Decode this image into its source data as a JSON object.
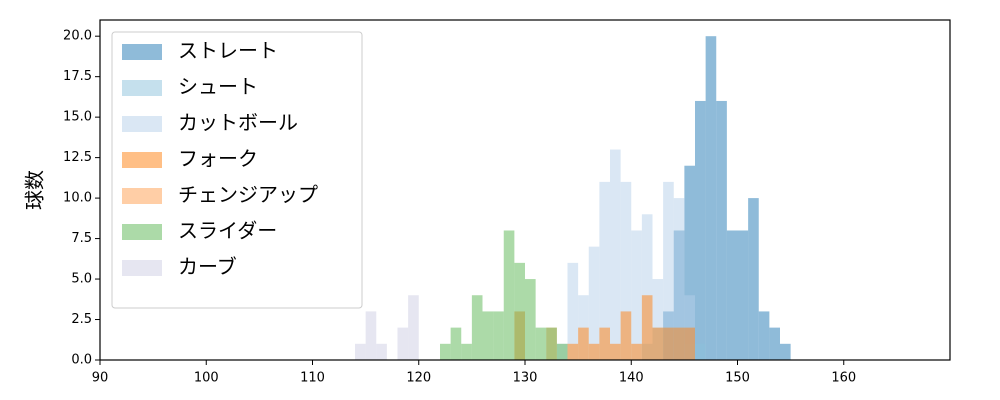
{
  "chart_data": {
    "type": "histogram",
    "ylabel": "球数",
    "xlim": [
      90,
      170
    ],
    "ylim": [
      0,
      21
    ],
    "xticks": [
      90,
      100,
      110,
      120,
      130,
      140,
      150,
      160
    ],
    "yticks": [
      {
        "value": 0,
        "label": "0.0"
      },
      {
        "value": 2.5,
        "label": "2.5"
      },
      {
        "value": 5,
        "label": "5.0"
      },
      {
        "value": 7.5,
        "label": "7.5"
      },
      {
        "value": 10,
        "label": "10.0"
      },
      {
        "value": 12.5,
        "label": "12.5"
      },
      {
        "value": 15,
        "label": "15.0"
      },
      {
        "value": 17.5,
        "label": "17.5"
      },
      {
        "value": 20,
        "label": "20.0"
      }
    ],
    "legend": "upper left",
    "opacity": 0.5,
    "bins": [
      114,
      115,
      116,
      117,
      118,
      119,
      120,
      121,
      122,
      123,
      124,
      125,
      126,
      127,
      128,
      129,
      130,
      131,
      132,
      133,
      134,
      135,
      136,
      137,
      138,
      139,
      140,
      141,
      142,
      143,
      144,
      145,
      146,
      147,
      148,
      149,
      150,
      151,
      152,
      153,
      154,
      155
    ],
    "series": [
      {
        "name": "ストレート",
        "color": "#1f77b4",
        "values": [
          0,
          0,
          0,
          0,
          0,
          0,
          0,
          0,
          0,
          0,
          0,
          0,
          0,
          0,
          0,
          0,
          0,
          0,
          0,
          0,
          0,
          0,
          0,
          0,
          0,
          0,
          0,
          0,
          0,
          3,
          8,
          12,
          16,
          20,
          16,
          8,
          8,
          10,
          3,
          2,
          1
        ]
      },
      {
        "name": "シュート",
        "color": "#8bc1db",
        "values": [
          0,
          0,
          0,
          0,
          0,
          0,
          0,
          0,
          0,
          0,
          0,
          0,
          0,
          0,
          0,
          0,
          0,
          0,
          0,
          0,
          0,
          0,
          0,
          0,
          0,
          0,
          0,
          1,
          2,
          2,
          2,
          1,
          1,
          0,
          0,
          0,
          0,
          0,
          0,
          0,
          0
        ]
      },
      {
        "name": "カットボール",
        "color": "#b5cfe9",
        "values": [
          0,
          0,
          0,
          0,
          0,
          0,
          0,
          0,
          0,
          0,
          0,
          0,
          0,
          0,
          0,
          0,
          0,
          0,
          0,
          1,
          6,
          4,
          7,
          11,
          13,
          11,
          8,
          9,
          5,
          11,
          10,
          4,
          0,
          0,
          0,
          0,
          0,
          0,
          0,
          0,
          0
        ]
      },
      {
        "name": "フォーク",
        "color": "#ff7f0e",
        "values": [
          0,
          0,
          0,
          0,
          0,
          0,
          0,
          0,
          0,
          0,
          0,
          0,
          0,
          0,
          0,
          3,
          0,
          0,
          0,
          0,
          1,
          2,
          1,
          2,
          1,
          3,
          1,
          4,
          2,
          2,
          2,
          2,
          0,
          0,
          0,
          0,
          0,
          0,
          0,
          0,
          0
        ]
      },
      {
        "name": "チェンジアップ",
        "color": "#ff9d4d",
        "values": [
          0,
          0,
          0,
          0,
          0,
          0,
          0,
          0,
          0,
          0,
          0,
          0,
          0,
          0,
          0,
          0,
          0,
          0,
          2,
          0,
          0,
          0,
          0,
          0,
          0,
          0,
          0,
          0,
          0,
          0,
          0,
          0,
          0,
          0,
          0,
          0,
          0,
          0,
          0,
          0,
          0
        ]
      },
      {
        "name": "スライダー",
        "color": "#5ab552",
        "values": [
          0,
          0,
          0,
          0,
          0,
          0,
          0,
          0,
          1,
          2,
          1,
          4,
          3,
          3,
          8,
          6,
          5,
          2,
          2,
          1,
          0,
          0,
          0,
          0,
          0,
          0,
          0,
          0,
          0,
          0,
          0,
          0,
          0,
          0,
          0,
          0,
          0,
          0,
          0,
          0,
          0
        ]
      },
      {
        "name": "カーブ",
        "color": "#cdcde3",
        "values": [
          1,
          3,
          1,
          0,
          2,
          4,
          0,
          0,
          0,
          0,
          0,
          0,
          0,
          0,
          0,
          0,
          0,
          0,
          0,
          0,
          0,
          0,
          0,
          0,
          0,
          0,
          0,
          0,
          0,
          0,
          0,
          0,
          0,
          0,
          0,
          0,
          0,
          0,
          0,
          0,
          0
        ]
      }
    ]
  }
}
